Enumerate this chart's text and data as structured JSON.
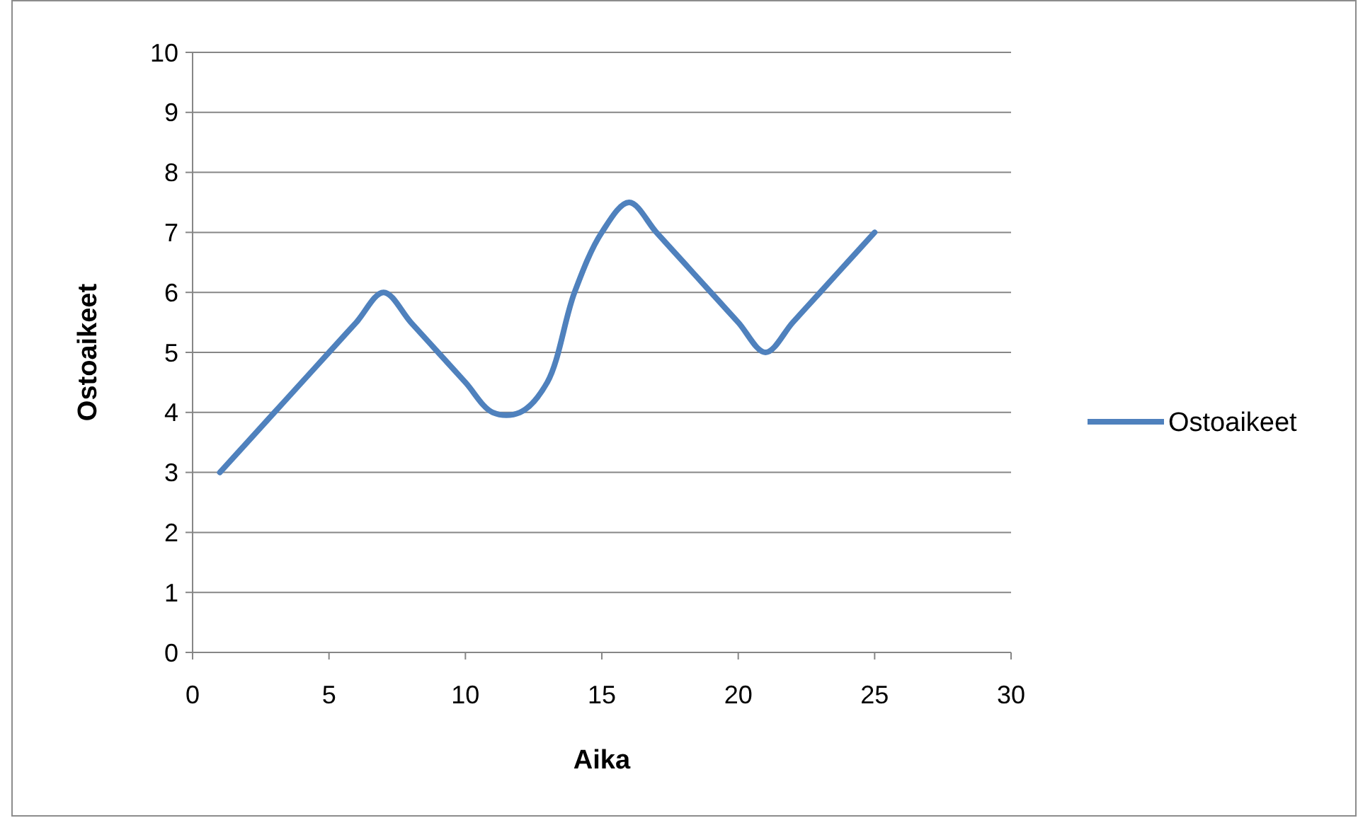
{
  "chart_data": {
    "type": "line",
    "xlabel": "Aika",
    "ylabel": "Ostoaikeet",
    "x": [
      1,
      2,
      3,
      4,
      5,
      6,
      7,
      8,
      9,
      10,
      11,
      12,
      13,
      14,
      15,
      16,
      17,
      18,
      19,
      20,
      21,
      22,
      23,
      24,
      25
    ],
    "series": [
      {
        "name": "Ostoaikeet",
        "color": "#4f81bd",
        "values": [
          3,
          3.5,
          4,
          4.5,
          5,
          5.5,
          6,
          5.5,
          5,
          4.5,
          4,
          4,
          4.5,
          6,
          7,
          7.5,
          7,
          6.5,
          6,
          5.5,
          5,
          5.5,
          6,
          6.5,
          7
        ]
      }
    ],
    "xlim": [
      0,
      30
    ],
    "xticks": [
      0,
      5,
      10,
      15,
      20,
      25,
      30
    ],
    "ylim": [
      0,
      10
    ],
    "yticks": [
      0,
      1,
      2,
      3,
      4,
      5,
      6,
      7,
      8,
      9,
      10
    ],
    "grid": "y",
    "legend": "right",
    "marker": "none",
    "line_style": "solid"
  }
}
